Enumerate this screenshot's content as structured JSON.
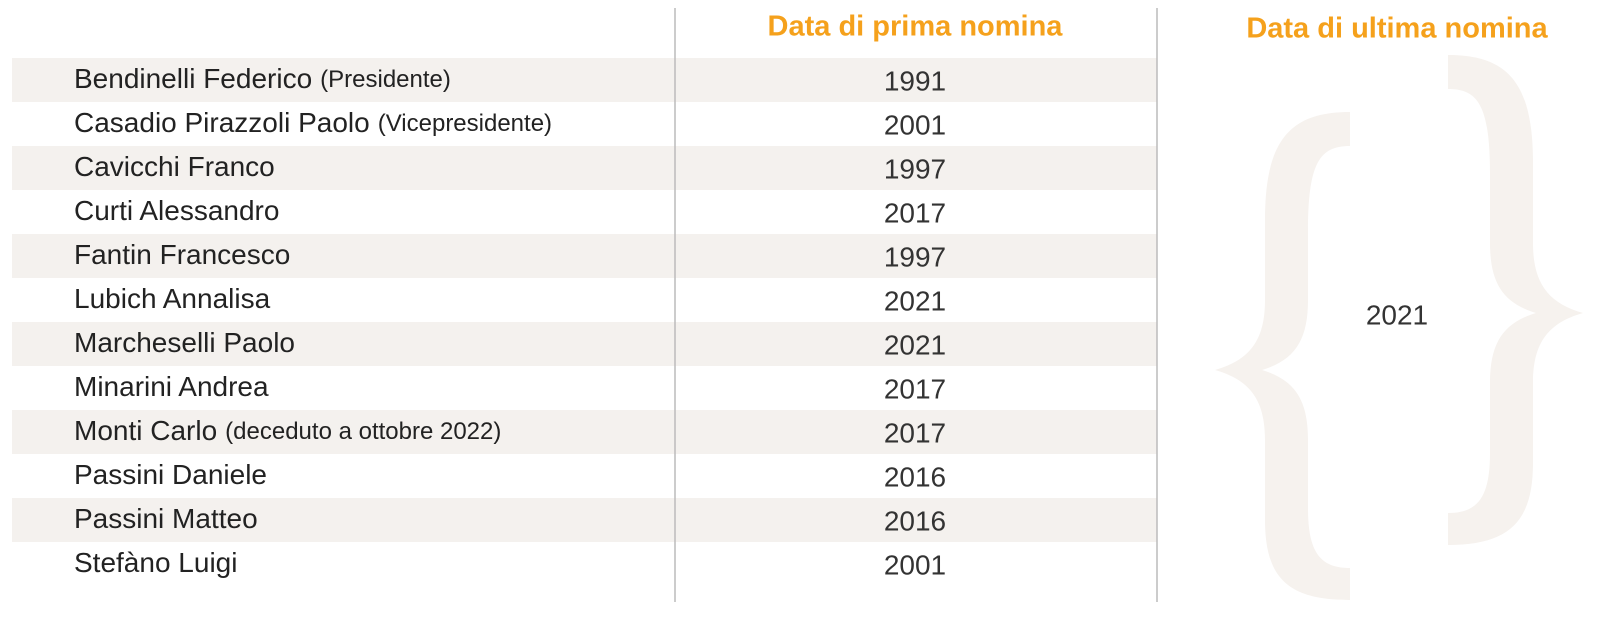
{
  "header": {
    "first": "Data di prima nomina",
    "last": "Data di ultima nomina"
  },
  "rows": [
    {
      "name": "Bendinelli Federico",
      "note": "(Presidente)",
      "first": "1991"
    },
    {
      "name": "Casadio Pirazzoli Paolo",
      "note": "(Vicepresidente)",
      "first": "2001"
    },
    {
      "name": "Cavicchi Franco",
      "first": "1997"
    },
    {
      "name": "Curti Alessandro",
      "first": "2017"
    },
    {
      "name": "Fantin Francesco",
      "first": "1997"
    },
    {
      "name": "Lubich Annalisa",
      "first": "2021"
    },
    {
      "name": "Marcheselli Paolo",
      "first": "2021"
    },
    {
      "name": "Minarini Andrea",
      "first": "2017"
    },
    {
      "name": "Monti Carlo",
      "note": "(deceduto a ottobre 2022)",
      "first": "2017"
    },
    {
      "name": "Passini Daniele",
      "first": "2016"
    },
    {
      "name": "Passini Matteo",
      "first": "2016"
    },
    {
      "name": "Stefàno Luigi",
      "first": "2001"
    }
  ],
  "last": "2021"
}
